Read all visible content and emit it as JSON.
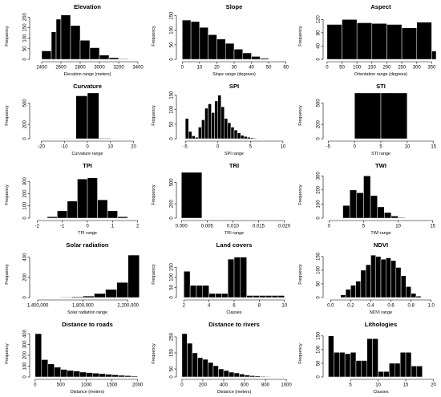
{
  "figure": {
    "background": "#ffffff",
    "bar_color": "#000000"
  },
  "chart_data": [
    {
      "type": "bar",
      "title": "Elevation",
      "xlabel": "Elevation range (meters)",
      "ylabel": "Frequency",
      "xlim": [
        2300,
        3450
      ],
      "ylim": [
        0,
        220
      ],
      "xticks": [
        2400,
        2600,
        2800,
        3000,
        3200,
        3400
      ],
      "xtick_labels": [
        "2400",
        "2600",
        "2800",
        "3000",
        "3200",
        "3400"
      ],
      "yticks": [
        0,
        50,
        100,
        150,
        200
      ],
      "ytick_labels": [
        "0",
        "50",
        "100",
        "150",
        "200"
      ],
      "bin_edges": [
        2400,
        2500,
        2550,
        2600,
        2700,
        2800,
        2900,
        3000,
        3100,
        3200,
        3300,
        3400
      ],
      "values": [
        40,
        130,
        190,
        210,
        160,
        90,
        55,
        20,
        8,
        3,
        1
      ]
    },
    {
      "type": "bar",
      "title": "Slope",
      "xlabel": "Slope range (degrees)",
      "ylabel": "Frequency",
      "xlim": [
        -2,
        62
      ],
      "ylim": [
        0,
        160
      ],
      "xticks": [
        0,
        10,
        20,
        30,
        40,
        50,
        60
      ],
      "xtick_labels": [
        "0",
        "10",
        "20",
        "30",
        "40",
        "50",
        "60"
      ],
      "yticks": [
        0,
        50,
        100,
        150
      ],
      "ytick_labels": [
        "0",
        "50",
        "100",
        "150"
      ],
      "bin_edges": [
        0,
        5,
        10,
        15,
        20,
        25,
        30,
        35,
        40,
        45,
        50
      ],
      "values": [
        135,
        130,
        110,
        85,
        70,
        55,
        35,
        22,
        10,
        4
      ]
    },
    {
      "type": "bar",
      "title": "Aspect",
      "xlabel": "Orientation range (degrees)",
      "ylabel": "Frequency",
      "xlim": [
        -5,
        365
      ],
      "ylim": [
        0,
        140
      ],
      "xticks": [
        0,
        50,
        100,
        150,
        200,
        250,
        300,
        350
      ],
      "xtick_labels": [
        "0",
        "50",
        "100",
        "150",
        "200",
        "250",
        "300",
        "350"
      ],
      "yticks": [
        0,
        40,
        80,
        120
      ],
      "ytick_labels": [
        "0",
        "40",
        "80",
        "120"
      ],
      "bin_edges": [
        0,
        50,
        100,
        150,
        200,
        250,
        300,
        350,
        365
      ],
      "values": [
        105,
        120,
        110,
        108,
        105,
        95,
        112,
        25
      ]
    },
    {
      "type": "bar",
      "title": "Curvature",
      "xlabel": "Curvature range",
      "ylabel": "Frequency",
      "xlim": [
        -24,
        24
      ],
      "ylim": [
        0,
        650
      ],
      "xticks": [
        -20,
        -10,
        0,
        10,
        20
      ],
      "xtick_labels": [
        "-20",
        "-10",
        "0",
        "10",
        "20"
      ],
      "yticks": [
        0,
        200,
        500
      ],
      "ytick_labels": [
        "0",
        "200",
        "500"
      ],
      "bin_edges": [
        -15,
        -10,
        -5,
        0,
        5,
        10,
        15
      ],
      "values": [
        2,
        6,
        600,
        640,
        8,
        2
      ]
    },
    {
      "type": "bar",
      "title": "SPI",
      "xlabel": "SPI range",
      "ylabel": "Frequency",
      "xlim": [
        -6,
        11
      ],
      "ylim": [
        0,
        160
      ],
      "xticks": [
        -5,
        0,
        5,
        10
      ],
      "xtick_labels": [
        "-5",
        "0",
        "5",
        "10"
      ],
      "yticks": [
        0,
        50,
        100,
        150
      ],
      "ytick_labels": [
        "0",
        "50",
        "100",
        "150"
      ],
      "bin_edges": [
        -5,
        -4.5,
        -4,
        -3.5,
        -3,
        -2.5,
        -2,
        -1.5,
        -1,
        -0.5,
        0,
        0.5,
        1,
        1.5,
        2,
        2.5,
        3,
        3.5,
        4,
        4.5,
        5,
        5.5,
        6
      ],
      "values": [
        70,
        25,
        10,
        5,
        40,
        65,
        105,
        120,
        90,
        130,
        150,
        110,
        70,
        55,
        40,
        30,
        20,
        12,
        8,
        5,
        3,
        2
      ]
    },
    {
      "type": "bar",
      "title": "STI",
      "xlabel": "STI range",
      "ylabel": "Frequency",
      "xlim": [
        -5.5,
        15.5
      ],
      "ylim": [
        0,
        650
      ],
      "xticks": [
        -5,
        0,
        5,
        10,
        15
      ],
      "xtick_labels": [
        "-5",
        "0",
        "5",
        "10",
        "15"
      ],
      "yticks": [
        0,
        200,
        500
      ],
      "ytick_labels": [
        "0",
        "200",
        "500"
      ],
      "bin_edges": [
        0,
        5,
        10
      ],
      "values": [
        640,
        640
      ]
    },
    {
      "type": "bar",
      "title": "TPI",
      "xlabel": "TPI range",
      "ylabel": "Frequency",
      "xlim": [
        -2.2,
        2.2
      ],
      "ylim": [
        0,
        380
      ],
      "xticks": [
        -2,
        -1,
        0,
        1,
        2
      ],
      "xtick_labels": [
        "-2",
        "-1",
        "0",
        "1",
        "2"
      ],
      "yticks": [
        0,
        100,
        200,
        300
      ],
      "ytick_labels": [
        "0",
        "100",
        "200",
        "300"
      ],
      "bin_edges": [
        -1.6,
        -1.2,
        -0.8,
        -0.4,
        0,
        0.4,
        0.8,
        1.2,
        1.6
      ],
      "values": [
        12,
        60,
        140,
        320,
        330,
        150,
        60,
        12
      ]
    },
    {
      "type": "bar",
      "title": "TRI",
      "xlabel": "TRI range",
      "ylabel": "Frequency",
      "xlim": [
        -0.0005,
        0.021
      ],
      "ylim": [
        0,
        650
      ],
      "xticks": [
        0,
        0.005,
        0.01,
        0.015,
        0.02
      ],
      "xtick_labels": [
        "0.000",
        "0.005",
        "0.010",
        "0.015",
        "0.020"
      ],
      "yticks": [
        0,
        200,
        500
      ],
      "ytick_labels": [
        "0",
        "200",
        "500"
      ],
      "bin_edges": [
        0,
        0.004,
        0.008,
        0.012,
        0.016,
        0.02
      ],
      "values": [
        640,
        2,
        1,
        0,
        0
      ]
    },
    {
      "type": "bar",
      "title": "TWI",
      "xlabel": "TWI range",
      "ylabel": "Frequency",
      "xlim": [
        -0.5,
        15.5
      ],
      "ylim": [
        0,
        330
      ],
      "xticks": [
        0,
        5,
        10,
        15
      ],
      "xtick_labels": [
        "0",
        "5",
        "10",
        "15"
      ],
      "yticks": [
        0,
        100,
        200,
        300
      ],
      "ytick_labels": [
        "0",
        "100",
        "200",
        "300"
      ],
      "bin_edges": [
        2,
        3,
        4,
        5,
        6,
        7,
        8,
        9,
        10,
        11,
        12
      ],
      "values": [
        90,
        200,
        180,
        300,
        160,
        80,
        40,
        15,
        5,
        2
      ]
    },
    {
      "type": "bar",
      "title": "Solar radiation",
      "xlabel": "Solar radiation range",
      "ylabel": "Frequency",
      "xlim": [
        1350000,
        2330000
      ],
      "ylim": [
        0,
        460
      ],
      "xticks": [
        1400000,
        1800000,
        2200000
      ],
      "xtick_labels": [
        "1,400,000",
        "1,800,000",
        "2,200,000"
      ],
      "yticks": [
        0,
        200,
        400
      ],
      "ytick_labels": [
        "0",
        "200",
        "400"
      ],
      "bin_edges": [
        1400000,
        1500000,
        1600000,
        1700000,
        1800000,
        1900000,
        2000000,
        2100000,
        2200000,
        2300000
      ],
      "values": [
        3,
        4,
        5,
        8,
        15,
        40,
        80,
        150,
        420
      ]
    },
    {
      "type": "bar",
      "title": "Land covers",
      "xlabel": "Classes",
      "ylabel": "Frequency",
      "xlim": [
        1.6,
        10.4
      ],
      "ylim": [
        0,
        230
      ],
      "xticks": [
        2,
        4,
        6,
        8,
        10
      ],
      "xtick_labels": [
        "2",
        "4",
        "6",
        "8",
        "10"
      ],
      "yticks": [
        0,
        50,
        100,
        150
      ],
      "ytick_labels": [
        "0",
        "50",
        "100",
        "150"
      ],
      "bin_edges": [
        2,
        2.5,
        3,
        3.5,
        4,
        4.5,
        5,
        5.5,
        6,
        6.5,
        7,
        7.5,
        8,
        8.5,
        9,
        9.5,
        10
      ],
      "values": [
        130,
        60,
        60,
        60,
        20,
        20,
        20,
        190,
        200,
        200,
        10,
        10,
        10,
        10,
        10,
        10
      ]
    },
    {
      "type": "bar",
      "title": "NDVI",
      "xlabel": "NDVI range",
      "ylabel": "Frequency",
      "xlim": [
        -0.05,
        1.05
      ],
      "ylim": [
        0,
        170
      ],
      "xticks": [
        0,
        0.2,
        0.4,
        0.6,
        0.8,
        1
      ],
      "xtick_labels": [
        "0.0",
        "0.2",
        "0.4",
        "0.6",
        "0.8",
        "1.0"
      ],
      "yticks": [
        0,
        50,
        100,
        150
      ],
      "ytick_labels": [
        "0",
        "50",
        "100",
        "150"
      ],
      "bin_edges": [
        0.1,
        0.15,
        0.2,
        0.25,
        0.3,
        0.35,
        0.4,
        0.45,
        0.5,
        0.55,
        0.6,
        0.65,
        0.7,
        0.75,
        0.8,
        0.85,
        0.9
      ],
      "values": [
        10,
        30,
        45,
        60,
        100,
        120,
        155,
        150,
        140,
        145,
        135,
        110,
        80,
        40,
        15,
        5
      ]
    },
    {
      "type": "bar",
      "title": "Distance to roads",
      "xlabel": "Distance (meters)",
      "ylabel": "Frequency",
      "xlim": [
        -60,
        2100
      ],
      "ylim": [
        0,
        430
      ],
      "xticks": [
        0,
        500,
        1000,
        1500,
        2000
      ],
      "xtick_labels": [
        "0",
        "500",
        "1000",
        "1500",
        "2000"
      ],
      "yticks": [
        0,
        100,
        200,
        300,
        400
      ],
      "ytick_labels": [
        "0",
        "100",
        "200",
        "300",
        "400"
      ],
      "bin_edges": [
        0,
        125,
        250,
        375,
        500,
        625,
        750,
        875,
        1000,
        1125,
        1250,
        1375,
        1500,
        1625,
        1750,
        1875,
        2000
      ],
      "values": [
        400,
        160,
        120,
        90,
        70,
        60,
        55,
        45,
        40,
        35,
        30,
        25,
        20,
        15,
        12,
        8
      ]
    },
    {
      "type": "bar",
      "title": "Distance to rivers",
      "xlabel": "Distance (meters)",
      "ylabel": "Frequency",
      "xlim": [
        -30,
        1030
      ],
      "ylim": [
        0,
        290
      ],
      "xticks": [
        0,
        200,
        400,
        600,
        800,
        1000
      ],
      "xtick_labels": [
        "0",
        "200",
        "400",
        "600",
        "800",
        "1000"
      ],
      "yticks": [
        0,
        50,
        150,
        250
      ],
      "ytick_labels": [
        "0",
        "50",
        "150",
        "250"
      ],
      "bin_edges": [
        0,
        50,
        100,
        150,
        200,
        250,
        300,
        350,
        400,
        450,
        500,
        550,
        600,
        650,
        700,
        750,
        800,
        850,
        900,
        950,
        1000
      ],
      "values": [
        270,
        210,
        150,
        120,
        110,
        90,
        70,
        50,
        40,
        30,
        25,
        18,
        12,
        8,
        6,
        4,
        3,
        2,
        1,
        1
      ]
    },
    {
      "type": "bar",
      "title": "Lithologies",
      "xlabel": "Classes",
      "ylabel": "Frequency",
      "xlim": [
        0.5,
        20.5
      ],
      "ylim": [
        0,
        170
      ],
      "xticks": [
        5,
        10,
        15,
        20
      ],
      "xtick_labels": [
        "5",
        "10",
        "15",
        "20"
      ],
      "yticks": [
        0,
        50,
        100,
        150
      ],
      "ytick_labels": [
        "0",
        "50",
        "100",
        "150"
      ],
      "bin_edges": [
        1,
        2,
        3,
        4,
        5,
        6,
        7,
        8,
        9,
        10,
        11,
        12,
        13,
        14,
        15,
        16,
        17,
        18
      ],
      "values": [
        150,
        90,
        90,
        85,
        90,
        60,
        60,
        140,
        140,
        20,
        20,
        50,
        50,
        90,
        90,
        40,
        40
      ]
    }
  ]
}
